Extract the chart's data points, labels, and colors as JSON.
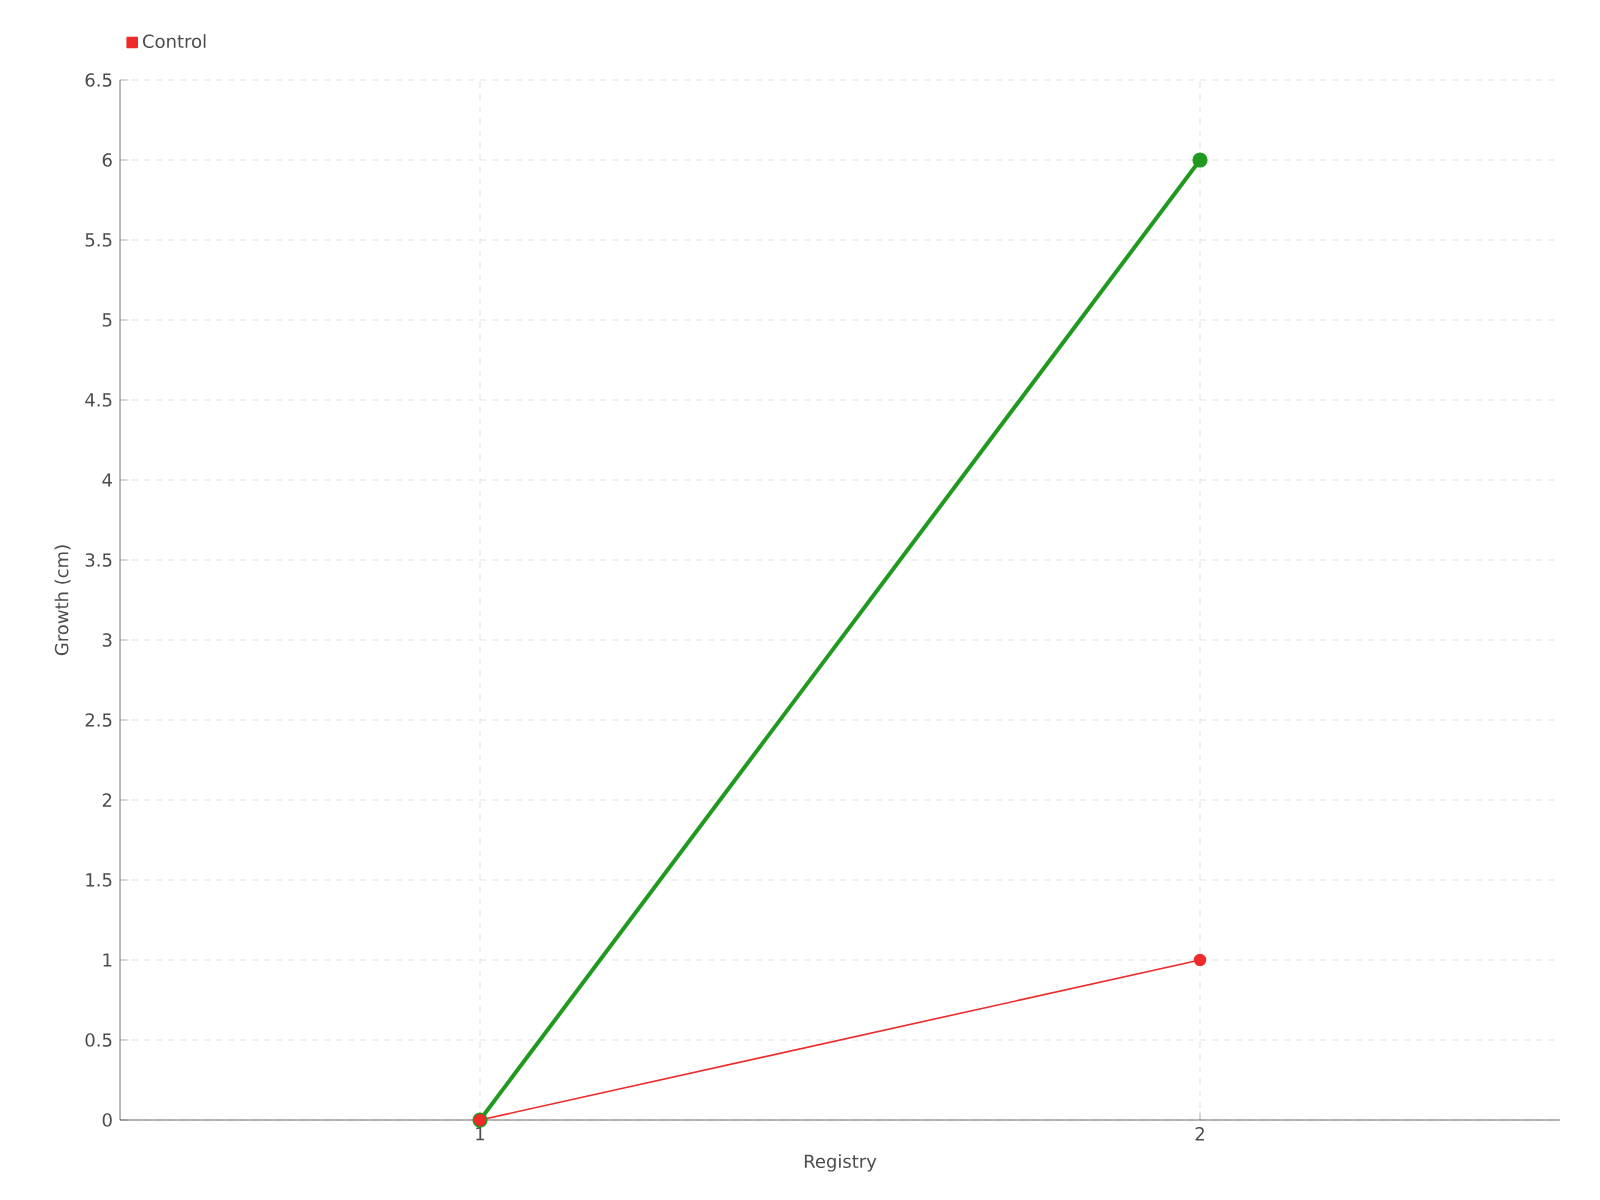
{
  "chart_data": {
    "type": "line",
    "xlabel": "Registry",
    "ylabel": "Growth (cm)",
    "categories": [
      "1",
      "2"
    ],
    "series": [
      {
        "color": "#1f9a1f",
        "values": [
          0,
          6
        ]
      },
      {
        "name": "Control",
        "color": "#ee2a2a",
        "values": [
          0,
          1
        ]
      }
    ],
    "ylim": [
      0,
      6.5
    ],
    "yticks": [
      0,
      0.5,
      1,
      1.5,
      2,
      2.5,
      3,
      3.5,
      4,
      4.5,
      5,
      5.5,
      6,
      6.5
    ],
    "grid": true,
    "legend": "top left",
    "marker": "circle"
  }
}
